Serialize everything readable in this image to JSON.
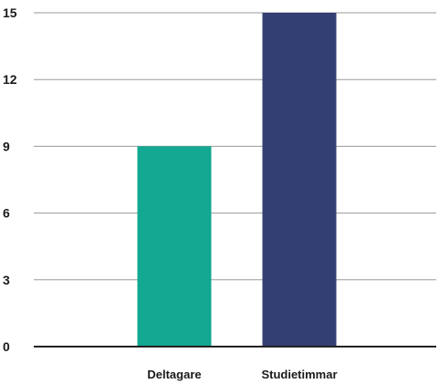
{
  "chart_data": {
    "type": "bar",
    "title": "",
    "xlabel": "",
    "ylabel": "",
    "categories": [
      "Deltagare",
      "Studietimmar"
    ],
    "values": [
      9,
      15
    ],
    "colors": [
      "#12a891",
      "#333f72"
    ],
    "ylim": [
      0,
      15
    ],
    "yticks": [
      0,
      3,
      6,
      9,
      12,
      15
    ],
    "grid": true,
    "legend": "none"
  }
}
